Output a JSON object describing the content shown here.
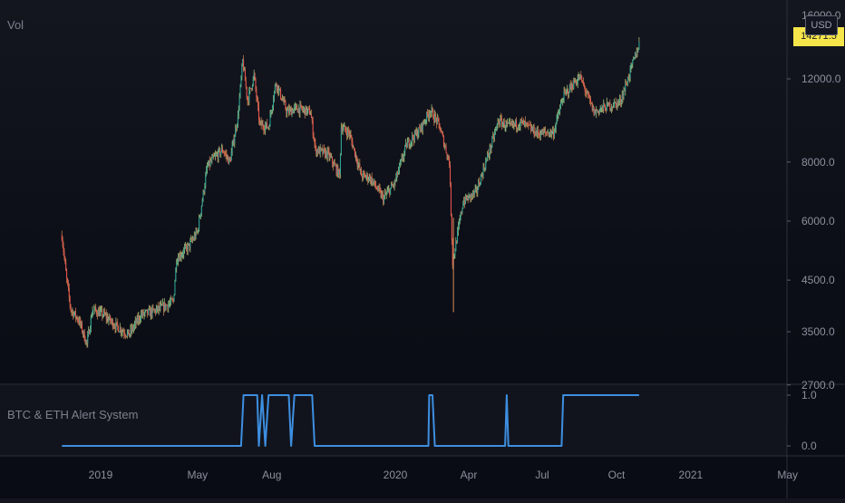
{
  "main_pane": {
    "title": "Vol",
    "currency": "USD",
    "last_price": "14271.5"
  },
  "indicator_pane": {
    "title": "BTC & ETH Alert System"
  },
  "colors": {
    "up": "#26a69a",
    "down": "#ef5350",
    "wick_up": "#b7d88a",
    "wick_down": "#d98a56",
    "indicator": "#3d8fe0",
    "price_tag": "#f6e54a",
    "axis_text": "#8a909c"
  },
  "chart_data": [
    {
      "type": "candlestick",
      "title": "",
      "y_scale": "log",
      "y_ticks": [
        "12000.0",
        "8000.0",
        "6000.0",
        "4500.0",
        "3500.0",
        "2700.0"
      ],
      "x_ticks": [
        "2019",
        "May",
        "Aug",
        "2020",
        "Apr",
        "Jul",
        "Oct",
        "2021",
        "May"
      ],
      "ylim": [
        2700,
        16000
      ],
      "close_path": [
        [
          "2018-11-14",
          5600
        ],
        [
          "2018-11-20",
          4500
        ],
        [
          "2018-11-25",
          3900
        ],
        [
          "2018-12-05",
          3700
        ],
        [
          "2018-12-15",
          3300
        ],
        [
          "2018-12-22",
          3900
        ],
        [
          "2019-01-05",
          3800
        ],
        [
          "2019-01-20",
          3600
        ],
        [
          "2019-02-05",
          3450
        ],
        [
          "2019-02-20",
          3800
        ],
        [
          "2019-03-05",
          3850
        ],
        [
          "2019-03-20",
          3950
        ],
        [
          "2019-04-01",
          4050
        ],
        [
          "2019-04-05",
          5000
        ],
        [
          "2019-04-20",
          5300
        ],
        [
          "2019-05-01",
          5700
        ],
        [
          "2019-05-13",
          7800
        ],
        [
          "2019-05-20",
          8100
        ],
        [
          "2019-06-01",
          8500
        ],
        [
          "2019-06-10",
          8000
        ],
        [
          "2019-06-20",
          10000
        ],
        [
          "2019-06-26",
          13100
        ],
        [
          "2019-07-02",
          10800
        ],
        [
          "2019-07-10",
          12200
        ],
        [
          "2019-07-17",
          9600
        ],
        [
          "2019-07-28",
          9500
        ],
        [
          "2019-08-06",
          11800
        ],
        [
          "2019-08-20",
          10200
        ],
        [
          "2019-09-01",
          10400
        ],
        [
          "2019-09-18",
          10200
        ],
        [
          "2019-09-24",
          8500
        ],
        [
          "2019-10-10",
          8300
        ],
        [
          "2019-10-24",
          7500
        ],
        [
          "2019-10-26",
          9500
        ],
        [
          "2019-11-05",
          9200
        ],
        [
          "2019-11-20",
          7500
        ],
        [
          "2019-12-01",
          7400
        ],
        [
          "2019-12-17",
          6700
        ],
        [
          "2019-12-31",
          7200
        ],
        [
          "2020-01-15",
          8700
        ],
        [
          "2020-02-01",
          9400
        ],
        [
          "2020-02-13",
          10300
        ],
        [
          "2020-02-24",
          9600
        ],
        [
          "2020-03-08",
          8000
        ],
        [
          "2020-03-12",
          4900
        ],
        [
          "2020-03-25",
          6600
        ],
        [
          "2020-04-10",
          6900
        ],
        [
          "2020-04-29",
          8700
        ],
        [
          "2020-05-08",
          9800
        ],
        [
          "2020-05-20",
          9500
        ],
        [
          "2020-06-05",
          9700
        ],
        [
          "2020-06-25",
          9200
        ],
        [
          "2020-07-15",
          9250
        ],
        [
          "2020-07-27",
          11000
        ],
        [
          "2020-08-10",
          11800
        ],
        [
          "2020-08-17",
          12100
        ],
        [
          "2020-09-03",
          10200
        ],
        [
          "2020-09-20",
          10500
        ],
        [
          "2020-10-05",
          10700
        ],
        [
          "2020-10-10",
          11300
        ],
        [
          "2020-10-21",
          12900
        ],
        [
          "2020-10-29",
          14200
        ]
      ]
    },
    {
      "type": "line",
      "title": "",
      "y_ticks": [
        "1.0",
        "0.0"
      ],
      "ylim": [
        0,
        1
      ],
      "series": [
        {
          "values": [
            [
              "2018-11-14",
              0
            ],
            [
              "2019-06-24",
              0
            ],
            [
              "2019-06-27",
              1
            ],
            [
              "2019-07-14",
              1
            ],
            [
              "2019-07-16",
              0
            ],
            [
              "2019-07-20",
              1
            ],
            [
              "2019-07-24",
              0
            ],
            [
              "2019-07-28",
              1
            ],
            [
              "2019-08-22",
              1
            ],
            [
              "2019-08-25",
              0
            ],
            [
              "2019-08-29",
              1
            ],
            [
              "2019-09-20",
              1
            ],
            [
              "2019-09-23",
              0
            ],
            [
              "2020-02-11",
              0
            ],
            [
              "2020-02-12",
              1
            ],
            [
              "2020-02-16",
              1
            ],
            [
              "2020-02-19",
              0
            ],
            [
              "2020-05-16",
              0
            ],
            [
              "2020-05-18",
              1
            ],
            [
              "2020-05-20",
              0
            ],
            [
              "2020-07-25",
              0
            ],
            [
              "2020-07-27",
              1
            ],
            [
              "2020-10-29",
              1
            ]
          ]
        }
      ]
    }
  ]
}
